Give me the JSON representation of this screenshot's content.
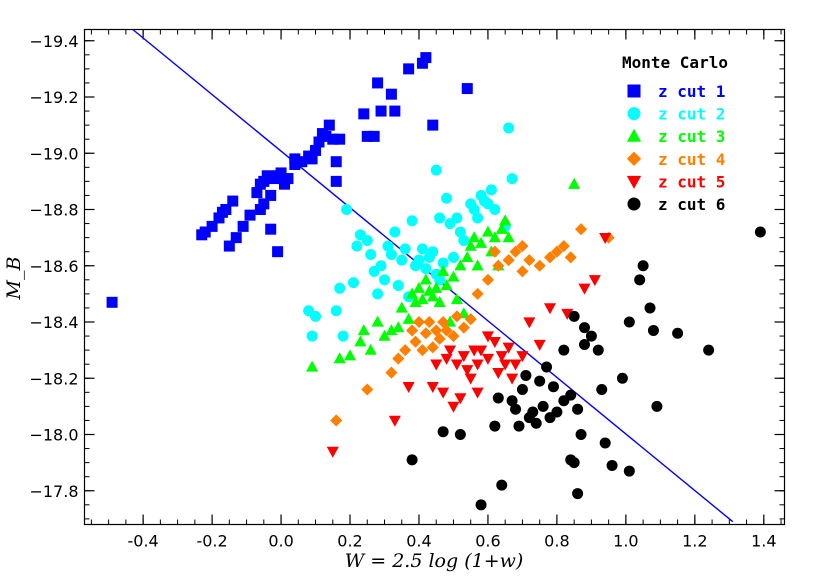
{
  "chart_data": {
    "type": "scatter",
    "xlabel": "W = 2.5 log (1+w)",
    "ylabel": "M_B",
    "xlim": [
      -0.57,
      1.46
    ],
    "ylim": [
      -17.68,
      -19.44
    ],
    "x_ticks": [
      -0.4,
      -0.2,
      0.0,
      0.2,
      0.4,
      0.6,
      0.8,
      1.0,
      1.2,
      1.4
    ],
    "x_tick_labels": [
      "-0.4",
      "-0.2",
      "0.0",
      "0.2",
      "0.4",
      "0.6",
      "0.8",
      "1.0",
      "1.2",
      "1.4"
    ],
    "y_ticks": [
      -19.4,
      -19.2,
      -19.0,
      -18.8,
      -18.6,
      -18.4,
      -18.2,
      -18.0,
      -17.8
    ],
    "y_tick_labels": [
      "−19.4",
      "−19.2",
      "−19.0",
      "−18.8",
      "−18.6",
      "−18.4",
      "−18.2",
      "−18.0",
      "−17.8"
    ],
    "legend": {
      "title": "Monte Carlo",
      "position": "top-right"
    },
    "fit_line": {
      "color": "#0000ff",
      "points": [
        [
          -0.43,
          -19.44
        ],
        [
          1.31,
          -17.69
        ]
      ]
    },
    "series": [
      {
        "name": "z cut 1",
        "marker": "square",
        "color": "#0000ff",
        "points": [
          [
            -0.49,
            -18.47
          ],
          [
            -0.23,
            -18.71
          ],
          [
            -0.22,
            -18.72
          ],
          [
            -0.2,
            -18.74
          ],
          [
            -0.18,
            -18.77
          ],
          [
            -0.17,
            -18.79
          ],
          [
            -0.16,
            -18.8
          ],
          [
            -0.15,
            -18.67
          ],
          [
            -0.14,
            -18.83
          ],
          [
            -0.13,
            -18.7
          ],
          [
            -0.11,
            -18.74
          ],
          [
            -0.09,
            -18.78
          ],
          [
            -0.07,
            -18.86
          ],
          [
            -0.06,
            -18.89
          ],
          [
            -0.05,
            -18.9
          ],
          [
            -0.04,
            -18.92
          ],
          [
            -0.06,
            -18.8
          ],
          [
            -0.05,
            -18.82
          ],
          [
            -0.03,
            -18.85
          ],
          [
            -0.02,
            -18.91
          ],
          [
            -0.01,
            -18.92
          ],
          [
            0.0,
            -18.93
          ],
          [
            0.01,
            -18.89
          ],
          [
            0.02,
            -18.91
          ],
          [
            -0.03,
            -18.73
          ],
          [
            -0.01,
            -18.65
          ],
          [
            0.04,
            -18.96
          ],
          [
            0.04,
            -18.98
          ],
          [
            0.06,
            -18.97
          ],
          [
            0.08,
            -18.99
          ],
          [
            0.09,
            -18.98
          ],
          [
            0.1,
            -19.01
          ],
          [
            0.11,
            -19.04
          ],
          [
            0.12,
            -19.07
          ],
          [
            0.13,
            -19.06
          ],
          [
            0.14,
            -19.1
          ],
          [
            0.15,
            -19.05
          ],
          [
            0.17,
            -19.05
          ],
          [
            0.16,
            -18.97
          ],
          [
            0.16,
            -18.9
          ],
          [
            0.24,
            -19.14
          ],
          [
            0.25,
            -19.06
          ],
          [
            0.27,
            -19.06
          ],
          [
            0.28,
            -19.25
          ],
          [
            0.29,
            -19.15
          ],
          [
            0.32,
            -19.21
          ],
          [
            0.33,
            -19.15
          ],
          [
            0.37,
            -19.3
          ],
          [
            0.41,
            -19.32
          ],
          [
            0.42,
            -19.34
          ],
          [
            0.44,
            -19.1
          ],
          [
            0.54,
            -19.23
          ]
        ]
      },
      {
        "name": "z cut 2",
        "marker": "circle",
        "color": "#00ffff",
        "points": [
          [
            0.08,
            -18.44
          ],
          [
            0.1,
            -18.42
          ],
          [
            0.09,
            -18.35
          ],
          [
            0.16,
            -18.44
          ],
          [
            0.17,
            -18.52
          ],
          [
            0.18,
            -18.35
          ],
          [
            0.19,
            -18.8
          ],
          [
            0.21,
            -18.54
          ],
          [
            0.22,
            -18.67
          ],
          [
            0.23,
            -18.71
          ],
          [
            0.25,
            -18.69
          ],
          [
            0.26,
            -18.64
          ],
          [
            0.27,
            -18.58
          ],
          [
            0.28,
            -18.5
          ],
          [
            0.29,
            -18.6
          ],
          [
            0.3,
            -18.55
          ],
          [
            0.31,
            -18.67
          ],
          [
            0.32,
            -18.64
          ],
          [
            0.33,
            -18.72
          ],
          [
            0.34,
            -18.53
          ],
          [
            0.35,
            -18.62
          ],
          [
            0.36,
            -18.66
          ],
          [
            0.37,
            -18.49
          ],
          [
            0.38,
            -18.76
          ],
          [
            0.39,
            -18.6
          ],
          [
            0.4,
            -18.62
          ],
          [
            0.41,
            -18.66
          ],
          [
            0.42,
            -18.59
          ],
          [
            0.43,
            -18.63
          ],
          [
            0.44,
            -18.65
          ],
          [
            0.45,
            -18.57
          ],
          [
            0.46,
            -18.55
          ],
          [
            0.46,
            -18.77
          ],
          [
            0.47,
            -18.61
          ],
          [
            0.48,
            -18.84
          ],
          [
            0.49,
            -18.75
          ],
          [
            0.5,
            -18.63
          ],
          [
            0.51,
            -18.77
          ],
          [
            0.52,
            -18.72
          ],
          [
            0.53,
            -18.69
          ],
          [
            0.55,
            -18.82
          ],
          [
            0.56,
            -18.8
          ],
          [
            0.57,
            -18.77
          ],
          [
            0.58,
            -18.85
          ],
          [
            0.6,
            -18.82
          ],
          [
            0.61,
            -18.87
          ],
          [
            0.62,
            -18.8
          ],
          [
            0.65,
            -18.74
          ],
          [
            0.66,
            -19.09
          ],
          [
            0.67,
            -18.91
          ],
          [
            0.59,
            -18.83
          ],
          [
            0.45,
            -18.94
          ]
        ]
      },
      {
        "name": "z cut 3",
        "marker": "triangle-up",
        "color": "#00ff00",
        "points": [
          [
            0.09,
            -18.24
          ],
          [
            0.17,
            -18.27
          ],
          [
            0.2,
            -18.28
          ],
          [
            0.23,
            -18.33
          ],
          [
            0.24,
            -18.37
          ],
          [
            0.26,
            -18.3
          ],
          [
            0.28,
            -18.4
          ],
          [
            0.3,
            -18.35
          ],
          [
            0.32,
            -18.37
          ],
          [
            0.34,
            -18.38
          ],
          [
            0.35,
            -18.45
          ],
          [
            0.37,
            -18.41
          ],
          [
            0.38,
            -18.5
          ],
          [
            0.39,
            -18.47
          ],
          [
            0.4,
            -18.52
          ],
          [
            0.41,
            -18.48
          ],
          [
            0.42,
            -18.55
          ],
          [
            0.43,
            -18.51
          ],
          [
            0.44,
            -18.49
          ],
          [
            0.45,
            -18.52
          ],
          [
            0.46,
            -18.47
          ],
          [
            0.47,
            -18.58
          ],
          [
            0.48,
            -18.53
          ],
          [
            0.5,
            -18.56
          ],
          [
            0.52,
            -18.6
          ],
          [
            0.54,
            -18.63
          ],
          [
            0.55,
            -18.67
          ],
          [
            0.56,
            -18.7
          ],
          [
            0.58,
            -18.68
          ],
          [
            0.6,
            -18.72
          ],
          [
            0.61,
            -18.65
          ],
          [
            0.62,
            -18.7
          ],
          [
            0.64,
            -18.73
          ],
          [
            0.65,
            -18.76
          ],
          [
            0.66,
            -18.7
          ],
          [
            0.63,
            -18.6
          ],
          [
            0.57,
            -18.6
          ],
          [
            0.51,
            -18.48
          ],
          [
            0.49,
            -18.4
          ],
          [
            0.53,
            -18.43
          ],
          [
            0.85,
            -18.89
          ]
        ]
      },
      {
        "name": "z cut 4",
        "marker": "diamond",
        "color": "#ff8000",
        "points": [
          [
            0.16,
            -18.05
          ],
          [
            0.25,
            -18.16
          ],
          [
            0.32,
            -18.22
          ],
          [
            0.34,
            -18.27
          ],
          [
            0.36,
            -18.3
          ],
          [
            0.38,
            -18.37
          ],
          [
            0.39,
            -18.33
          ],
          [
            0.4,
            -18.4
          ],
          [
            0.41,
            -18.3
          ],
          [
            0.42,
            -18.36
          ],
          [
            0.43,
            -18.4
          ],
          [
            0.44,
            -18.31
          ],
          [
            0.45,
            -18.37
          ],
          [
            0.46,
            -18.34
          ],
          [
            0.47,
            -18.4
          ],
          [
            0.48,
            -18.37
          ],
          [
            0.5,
            -18.35
          ],
          [
            0.51,
            -18.42
          ],
          [
            0.53,
            -18.38
          ],
          [
            0.55,
            -18.41
          ],
          [
            0.57,
            -18.5
          ],
          [
            0.6,
            -18.55
          ],
          [
            0.63,
            -18.6
          ],
          [
            0.66,
            -18.62
          ],
          [
            0.68,
            -18.65
          ],
          [
            0.7,
            -18.67
          ],
          [
            0.72,
            -18.62
          ],
          [
            0.75,
            -18.6
          ],
          [
            0.78,
            -18.63
          ],
          [
            0.8,
            -18.65
          ],
          [
            0.82,
            -18.67
          ],
          [
            0.84,
            -18.63
          ],
          [
            0.87,
            -18.73
          ],
          [
            0.95,
            -18.7
          ],
          [
            0.62,
            -18.65
          ],
          [
            0.7,
            -18.58
          ]
        ]
      },
      {
        "name": "z cut 5",
        "marker": "triangle-down",
        "color": "#ff0000",
        "points": [
          [
            0.15,
            -17.94
          ],
          [
            0.33,
            -18.05
          ],
          [
            0.37,
            -18.17
          ],
          [
            0.44,
            -18.17
          ],
          [
            0.47,
            -18.15
          ],
          [
            0.5,
            -18.1
          ],
          [
            0.52,
            -18.13
          ],
          [
            0.45,
            -18.25
          ],
          [
            0.48,
            -18.27
          ],
          [
            0.49,
            -18.3
          ],
          [
            0.51,
            -18.25
          ],
          [
            0.53,
            -18.28
          ],
          [
            0.54,
            -18.23
          ],
          [
            0.56,
            -18.3
          ],
          [
            0.57,
            -18.25
          ],
          [
            0.58,
            -18.3
          ],
          [
            0.6,
            -18.27
          ],
          [
            0.62,
            -18.33
          ],
          [
            0.63,
            -18.22
          ],
          [
            0.64,
            -18.28
          ],
          [
            0.65,
            -18.25
          ],
          [
            0.66,
            -18.31
          ],
          [
            0.68,
            -18.25
          ],
          [
            0.7,
            -18.28
          ],
          [
            0.72,
            -18.4
          ],
          [
            0.75,
            -18.32
          ],
          [
            0.78,
            -18.45
          ],
          [
            0.83,
            -18.43
          ],
          [
            0.88,
            -18.52
          ],
          [
            0.91,
            -18.55
          ],
          [
            0.94,
            -18.7
          ],
          [
            0.6,
            -18.35
          ],
          [
            0.55,
            -18.2
          ],
          [
            0.67,
            -18.2
          ],
          [
            0.57,
            -18.15
          ]
        ]
      },
      {
        "name": "z cut 6",
        "marker": "circle",
        "color": "#000000",
        "points": [
          [
            0.38,
            -17.91
          ],
          [
            0.47,
            -18.01
          ],
          [
            0.52,
            -18.0
          ],
          [
            0.58,
            -17.75
          ],
          [
            0.62,
            -18.03
          ],
          [
            0.64,
            -17.82
          ],
          [
            0.63,
            -18.13
          ],
          [
            0.67,
            -18.12
          ],
          [
            0.68,
            -18.09
          ],
          [
            0.69,
            -18.03
          ],
          [
            0.7,
            -18.16
          ],
          [
            0.71,
            -18.21
          ],
          [
            0.72,
            -18.06
          ],
          [
            0.73,
            -18.08
          ],
          [
            0.74,
            -18.04
          ],
          [
            0.75,
            -18.19
          ],
          [
            0.76,
            -18.1
          ],
          [
            0.77,
            -18.24
          ],
          [
            0.78,
            -18.06
          ],
          [
            0.79,
            -18.17
          ],
          [
            0.8,
            -18.08
          ],
          [
            0.82,
            -18.12
          ],
          [
            0.84,
            -18.14
          ],
          [
            0.84,
            -17.91
          ],
          [
            0.85,
            -17.9
          ],
          [
            0.86,
            -17.79
          ],
          [
            0.86,
            -18.09
          ],
          [
            0.87,
            -18.0
          ],
          [
            0.88,
            -18.38
          ],
          [
            0.88,
            -18.32
          ],
          [
            0.9,
            -18.35
          ],
          [
            0.92,
            -18.3
          ],
          [
            0.93,
            -18.16
          ],
          [
            0.94,
            -17.97
          ],
          [
            0.96,
            -17.89
          ],
          [
            0.99,
            -18.2
          ],
          [
            1.01,
            -18.4
          ],
          [
            1.01,
            -17.87
          ],
          [
            1.04,
            -18.55
          ],
          [
            1.05,
            -18.6
          ],
          [
            1.07,
            -18.45
          ],
          [
            1.08,
            -18.37
          ],
          [
            1.09,
            -18.1
          ],
          [
            1.15,
            -18.36
          ],
          [
            1.24,
            -18.3
          ],
          [
            1.39,
            -18.72
          ],
          [
            0.85,
            -18.42
          ],
          [
            0.82,
            -18.3
          ]
        ]
      }
    ]
  }
}
